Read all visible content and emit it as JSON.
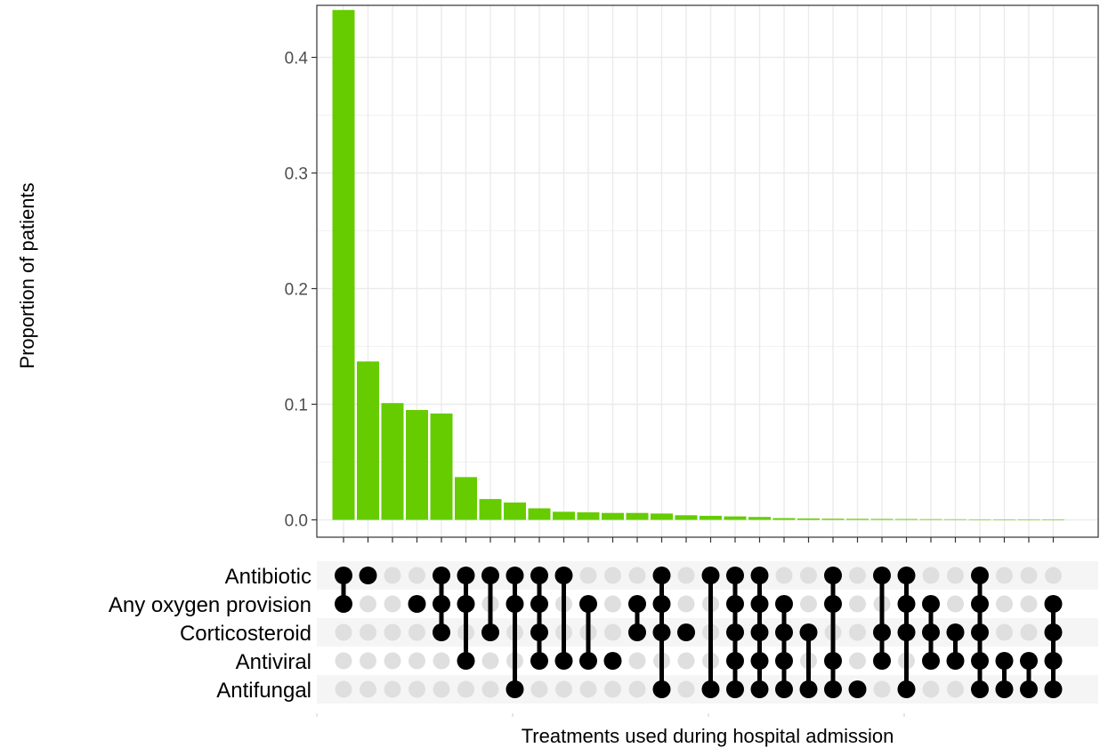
{
  "chart_data": {
    "type": "bar",
    "subtype": "upset",
    "ylabel": "Proportion of patients",
    "xlabel": "Treatments used during hospital admission",
    "ylim": [
      -0.015,
      0.445
    ],
    "yticks": [
      0.0,
      0.1,
      0.2,
      0.3,
      0.4
    ],
    "ytick_labels": [
      "0.0",
      "0.1",
      "0.2",
      "0.3",
      "0.4"
    ],
    "grid": true,
    "bar_color": "#66CC00",
    "sets": [
      "Antibiotic",
      "Any oxygen provision",
      "Corticosteroid",
      "Antiviral",
      "Antifungal"
    ],
    "values": [
      0.441,
      0.137,
      0.101,
      0.095,
      0.092,
      0.037,
      0.018,
      0.015,
      0.01,
      0.007,
      0.0065,
      0.006,
      0.006,
      0.0055,
      0.004,
      0.0035,
      0.003,
      0.0025,
      0.0015,
      0.0012,
      0.001,
      0.0009,
      0.0008,
      0.0007,
      0.0006,
      0.0005,
      0.0004,
      0.0003,
      0.0002,
      0.0002
    ],
    "combinations": [
      [
        0,
        1
      ],
      [
        0
      ],
      [],
      [
        1
      ],
      [
        0,
        1,
        2
      ],
      [
        0,
        1,
        3
      ],
      [
        0,
        2
      ],
      [
        0,
        1,
        4
      ],
      [
        0,
        1,
        2,
        3
      ],
      [
        0,
        3
      ],
      [
        1,
        3
      ],
      [
        3
      ],
      [
        1,
        2
      ],
      [
        0,
        1,
        2,
        4
      ],
      [
        2
      ],
      [
        0,
        4
      ],
      [
        0,
        1,
        2,
        3,
        4
      ],
      [
        0,
        1,
        2,
        3,
        4
      ],
      [
        1,
        2,
        3,
        4
      ],
      [
        2,
        4
      ],
      [
        0,
        1,
        3,
        4
      ],
      [
        4
      ],
      [
        0,
        2,
        3
      ],
      [
        0,
        1,
        2,
        4
      ],
      [
        1,
        2,
        3
      ],
      [
        2,
        3
      ],
      [
        0,
        1,
        2,
        3,
        4
      ],
      [
        3,
        4
      ],
      [
        3,
        4
      ],
      [
        1,
        2,
        3,
        4
      ]
    ]
  }
}
